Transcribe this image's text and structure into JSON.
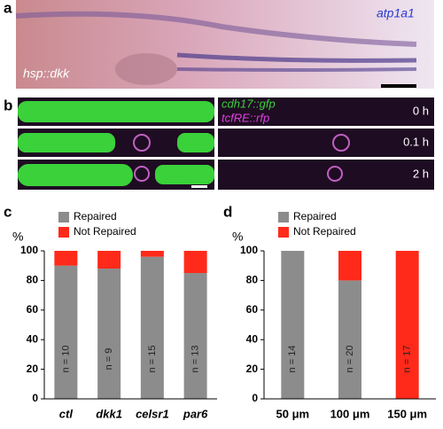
{
  "panels": {
    "a": {
      "label": "a",
      "gene": "atp1a1",
      "transgene": "hsp::dkk"
    },
    "b": {
      "label": "b",
      "channels": [
        "cdh17::gfp",
        "tcfRE::rfp"
      ],
      "times": [
        "0 h",
        "0.1 h",
        "2 h"
      ]
    }
  },
  "chart_data": [
    {
      "type": "bar",
      "stacked": true,
      "panel_label": "c",
      "y_label": "%",
      "categories": [
        "ctl",
        "dkk1",
        "celsr1",
        "par6"
      ],
      "category_font_style": "italic",
      "series": [
        {
          "name": "Repaired",
          "color": "#8c8c8c",
          "values": [
            90,
            88,
            96,
            85
          ]
        },
        {
          "name": "Not Repaired",
          "color": "#ff2a1a",
          "values": [
            10,
            12,
            4,
            15
          ]
        }
      ],
      "n_labels": [
        "n = 10",
        "n = 9",
        "n = 15",
        "n = 13"
      ],
      "ylim": [
        0,
        100
      ],
      "yticks": [
        0,
        20,
        40,
        60,
        80,
        100
      ]
    },
    {
      "type": "bar",
      "stacked": true,
      "panel_label": "d",
      "y_label": "%",
      "categories": [
        "50 μm",
        "100 μm",
        "150 μm"
      ],
      "category_font_style": "normal",
      "series": [
        {
          "name": "Repaired",
          "color": "#8c8c8c",
          "values": [
            100,
            80,
            0
          ]
        },
        {
          "name": "Not Repaired",
          "color": "#ff2a1a",
          "values": [
            0,
            20,
            100
          ]
        }
      ],
      "n_labels": [
        "n = 14",
        "n = 20",
        "n = 17"
      ],
      "ylim": [
        0,
        100
      ],
      "yticks": [
        0,
        20,
        40,
        60,
        80,
        100
      ]
    }
  ]
}
